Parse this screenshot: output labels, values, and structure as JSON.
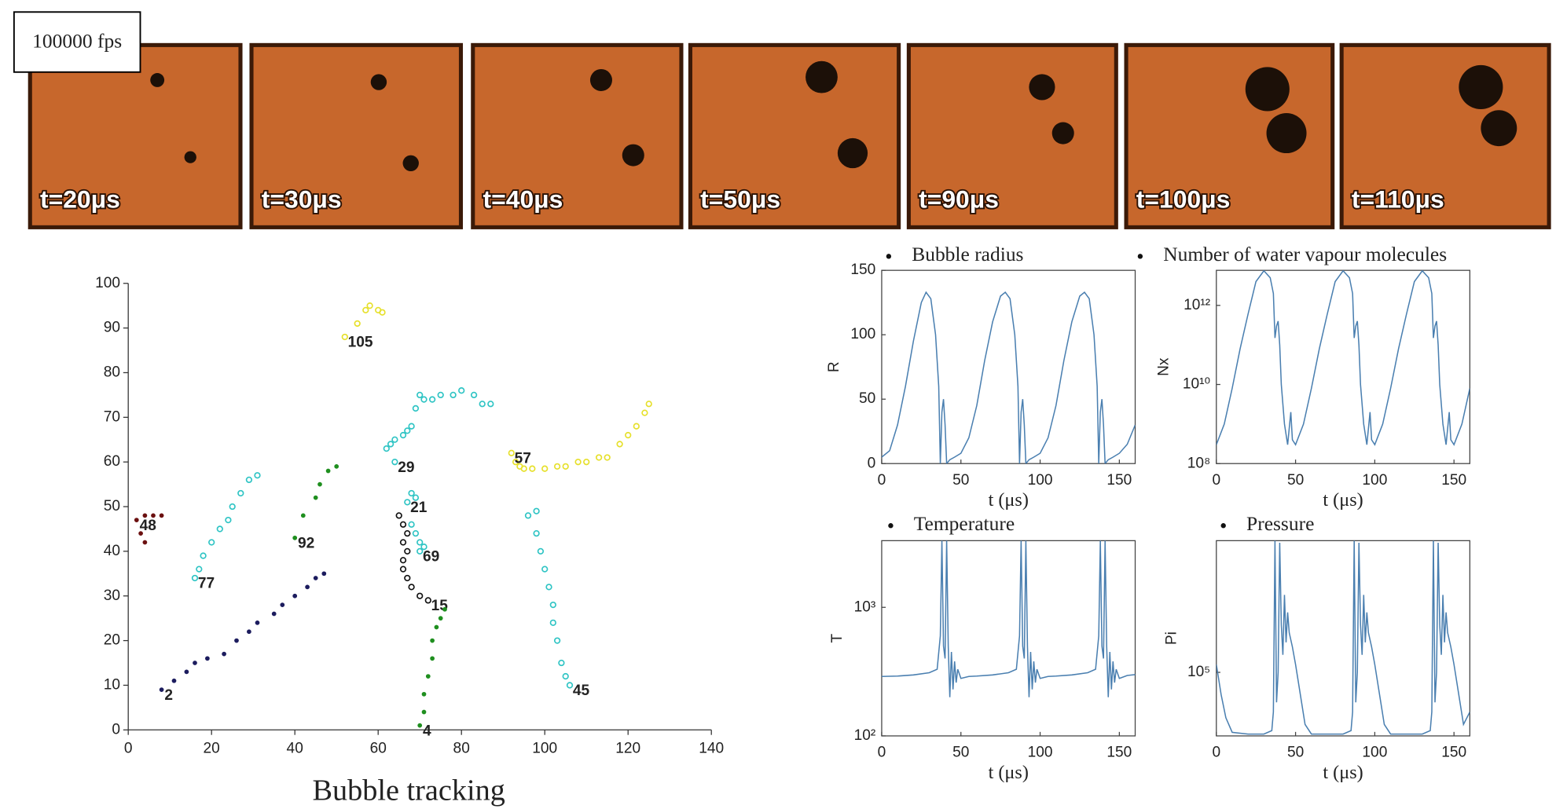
{
  "frames": {
    "label": "100000 fps",
    "captions": [
      "t=20μs",
      "t=30μs",
      "t=40μs",
      "t=50μs",
      "t=90μs",
      "t=100μs",
      "t=110μs"
    ]
  },
  "chart_data": [
    {
      "type": "scatter",
      "title": "Bubble tracking",
      "xlim": [
        0,
        140
      ],
      "ylim": [
        0,
        100
      ],
      "xticks": [
        0,
        20,
        40,
        60,
        80,
        100,
        120,
        140
      ],
      "yticks": [
        0,
        10,
        20,
        30,
        40,
        50,
        60,
        70,
        80,
        90,
        100
      ],
      "series": [
        {
          "name": "105",
          "color": "#e6e02a",
          "marker": "open",
          "x": [
            52,
            55,
            57,
            58,
            60,
            61
          ],
          "values": [
            88,
            91,
            94,
            95,
            94,
            93.5
          ]
        },
        {
          "name": "57",
          "color": "#e6e02a",
          "marker": "open",
          "x": [
            92,
            93,
            94,
            95,
            97,
            100,
            103,
            105,
            108,
            110,
            113,
            115,
            118,
            120,
            122,
            124,
            125
          ],
          "values": [
            62,
            60,
            59,
            58.5,
            58.5,
            58.5,
            59,
            59,
            60,
            60,
            61,
            61,
            64,
            66,
            68,
            71,
            73
          ]
        },
        {
          "name": "29",
          "color": "#2ec4c4",
          "marker": "open",
          "x": [
            64,
            62,
            63,
            64,
            66,
            67,
            68,
            69,
            70,
            71,
            73,
            75,
            78,
            80,
            83,
            85,
            87
          ],
          "values": [
            60,
            63,
            64,
            65,
            66,
            67,
            68,
            72,
            75,
            74,
            74,
            75,
            75,
            76,
            75,
            73,
            73
          ]
        },
        {
          "name": "21",
          "color": "#2ec4c4",
          "marker": "open",
          "x": [
            67,
            68,
            69
          ],
          "values": [
            51,
            53,
            52
          ]
        },
        {
          "name": "69",
          "color": "#2ec4c4",
          "marker": "open",
          "x": [
            70,
            71,
            70,
            69,
            68
          ],
          "values": [
            40,
            41,
            42,
            44,
            46
          ]
        },
        {
          "name": "48",
          "color": "#6b1010",
          "marker": "filled",
          "x": [
            2,
            4,
            6,
            8,
            3,
            4
          ],
          "values": [
            47,
            48,
            48,
            48,
            44,
            42
          ]
        },
        {
          "name": "77",
          "color": "#2ec4c4",
          "marker": "open",
          "x": [
            16,
            17,
            18,
            20,
            22,
            24,
            25,
            27,
            29,
            31
          ],
          "values": [
            34,
            36,
            39,
            42,
            45,
            47,
            50,
            53,
            56,
            57
          ]
        },
        {
          "name": "92",
          "color": "#1f8f1f",
          "marker": "filled",
          "x": [
            40,
            42,
            45,
            46,
            48,
            50
          ],
          "values": [
            43,
            48,
            52,
            55,
            58,
            59
          ]
        },
        {
          "name": "2",
          "color": "#1c1c5e",
          "marker": "filled",
          "x": [
            8,
            11,
            14,
            16,
            19,
            23,
            26,
            29,
            31,
            35,
            37,
            40,
            43,
            45,
            47
          ],
          "values": [
            9,
            11,
            13,
            15,
            16,
            17,
            20,
            22,
            24,
            26,
            28,
            30,
            32,
            34,
            35
          ]
        },
        {
          "name": "15",
          "color": "#111111",
          "marker": "open",
          "x": [
            72,
            70,
            68,
            67,
            66,
            66,
            67,
            66,
            67,
            66,
            65
          ],
          "values": [
            29,
            30,
            32,
            34,
            36,
            38,
            40,
            42,
            44,
            46,
            48
          ]
        },
        {
          "name": "4",
          "color": "#1f8f1f",
          "marker": "filled",
          "x": [
            70,
            71,
            71,
            72,
            73,
            73,
            74,
            75,
            76
          ],
          "values": [
            1,
            4,
            8,
            12,
            16,
            20,
            23,
            25,
            27
          ]
        },
        {
          "name": "45",
          "color": "#2ec4c4",
          "marker": "open",
          "x": [
            106,
            105,
            104,
            103,
            102,
            102,
            101,
            100,
            99,
            98,
            98,
            96
          ],
          "values": [
            10,
            12,
            15,
            20,
            24,
            28,
            32,
            36,
            40,
            44,
            49,
            48
          ]
        }
      ]
    },
    {
      "type": "line",
      "title": "Bubble radius",
      "x_label": "t (μs)",
      "y_label": "R",
      "color": "#4a7fb0",
      "log_y": false,
      "xlim": [
        0,
        160
      ],
      "ylim": [
        0,
        150
      ],
      "xticks": [
        0,
        50,
        100,
        150
      ],
      "yticks": [
        0,
        50,
        100,
        150
      ],
      "x": [
        0,
        5,
        10,
        15,
        20,
        25,
        28,
        31,
        34,
        36,
        37,
        38,
        39,
        40,
        41,
        43,
        46,
        50,
        55,
        60,
        65,
        70,
        75,
        78,
        81,
        84,
        86,
        87,
        88,
        89,
        90,
        91,
        93,
        96,
        100,
        105,
        110,
        115,
        120,
        125,
        128,
        131,
        134,
        136,
        137,
        138,
        139,
        140,
        141,
        143,
        146,
        150,
        155,
        160
      ],
      "values": [
        5,
        10,
        30,
        60,
        95,
        125,
        133,
        128,
        100,
        60,
        0,
        40,
        50,
        30,
        0,
        3,
        5,
        8,
        20,
        45,
        80,
        110,
        130,
        133,
        128,
        100,
        60,
        0,
        40,
        50,
        30,
        0,
        3,
        5,
        8,
        20,
        45,
        80,
        110,
        130,
        133,
        128,
        100,
        60,
        0,
        40,
        50,
        30,
        0,
        3,
        5,
        8,
        15,
        30
      ]
    },
    {
      "type": "line",
      "title": "Number of water vapour molecules",
      "x_label": "t (μs)",
      "y_label": "Nx",
      "color": "#4a7fb0",
      "log_y": true,
      "xlim": [
        0,
        160
      ],
      "ylim": [
        100000000,
        7700000000000
      ],
      "xticks": [
        0,
        50,
        100,
        150
      ],
      "yticks": [
        {
          "value": 100000000,
          "label": "10⁸"
        },
        {
          "value": 10000000000,
          "label": "10¹⁰"
        },
        {
          "value": 1000000000000,
          "label": "10¹²"
        }
      ],
      "x": [
        0,
        5,
        10,
        15,
        20,
        25,
        30,
        34,
        36,
        37,
        38,
        39,
        40,
        41,
        43,
        45,
        47,
        48,
        50,
        55,
        60,
        65,
        70,
        75,
        80,
        84,
        86,
        87,
        88,
        89,
        90,
        91,
        93,
        95,
        97,
        98,
        100,
        105,
        110,
        115,
        120,
        125,
        130,
        134,
        136,
        137,
        138,
        139,
        140,
        141,
        143,
        145,
        147,
        148,
        150,
        155,
        160
      ],
      "values": [
        300000000.0,
        1000000000.0,
        8000000000.0,
        80000000000.0,
        600000000000.0,
        4000000000000.0,
        7500000000000.0,
        5000000000000.0,
        2000000000000.0,
        150000000000.0,
        300000000000.0,
        400000000000.0,
        100000000000.0,
        10000000000.0,
        1000000000.0,
        300000000.0,
        2000000000.0,
        400000000.0,
        300000000.0,
        1000000000.0,
        8000000000.0,
        80000000000.0,
        600000000000.0,
        4000000000000.0,
        7500000000000.0,
        5000000000000.0,
        2000000000000.0,
        150000000000.0,
        300000000000.0,
        400000000000.0,
        100000000000.0,
        10000000000.0,
        1000000000.0,
        300000000.0,
        2000000000.0,
        400000000.0,
        300000000.0,
        1000000000.0,
        8000000000.0,
        80000000000.0,
        600000000000.0,
        4000000000000.0,
        7500000000000.0,
        5000000000000.0,
        2000000000000.0,
        150000000000.0,
        300000000000.0,
        400000000000.0,
        100000000000.0,
        10000000000.0,
        1000000000.0,
        300000000.0,
        2000000000.0,
        400000000.0,
        300000000.0,
        1000000000.0,
        8000000000.0
      ]
    },
    {
      "type": "line",
      "title": "Temperature",
      "x_label": "t (μs)",
      "y_label": "T",
      "color": "#4a7fb0",
      "log_y": true,
      "xlim": [
        0,
        160
      ],
      "ylim": [
        100,
        3300
      ],
      "xticks": [
        0,
        50,
        100,
        150
      ],
      "yticks": [
        {
          "value": 100,
          "label": "10²"
        },
        {
          "value": 1000,
          "label": "10³"
        }
      ],
      "x": [
        0,
        10,
        20,
        30,
        35,
        37,
        38,
        39,
        40,
        41,
        42,
        43,
        44,
        45,
        46,
        47,
        48,
        50,
        55,
        60,
        70,
        80,
        85,
        87,
        88,
        89,
        90,
        91,
        92,
        93,
        94,
        95,
        96,
        97,
        98,
        100,
        105,
        110,
        120,
        130,
        135,
        137,
        138,
        139,
        140,
        141,
        142,
        143,
        144,
        145,
        146,
        147,
        148,
        150,
        155,
        160
      ],
      "values": [
        290,
        292,
        298,
        310,
        330,
        600,
        3300,
        500,
        400,
        3300,
        500,
        200,
        450,
        230,
        380,
        260,
        330,
        280,
        290,
        292,
        298,
        310,
        330,
        600,
        3300,
        500,
        400,
        3300,
        500,
        200,
        450,
        230,
        380,
        260,
        330,
        280,
        290,
        292,
        298,
        310,
        330,
        600,
        3300,
        500,
        400,
        3300,
        500,
        200,
        450,
        230,
        380,
        260,
        330,
        280,
        295,
        300
      ]
    },
    {
      "type": "line",
      "title": "Pressure",
      "x_label": "t (μs)",
      "y_label": "Pi",
      "color": "#4a7fb0",
      "log_y": true,
      "xlim": [
        0,
        160
      ],
      "ylim": [
        23000,
        2100000
      ],
      "xticks": [
        0,
        50,
        100,
        150
      ],
      "yticks": [
        {
          "value": 100000,
          "label": "10⁵"
        }
      ],
      "x": [
        0,
        3,
        6,
        10,
        20,
        30,
        35,
        36,
        37,
        38,
        39,
        40,
        41,
        42,
        43,
        44,
        45,
        46,
        48,
        50,
        53,
        56,
        60,
        70,
        80,
        85,
        86,
        87,
        88,
        89,
        90,
        91,
        92,
        93,
        94,
        95,
        96,
        98,
        100,
        103,
        106,
        110,
        120,
        130,
        135,
        136,
        137,
        138,
        139,
        140,
        141,
        142,
        143,
        144,
        145,
        146,
        148,
        150,
        153,
        156,
        160
      ],
      "values": [
        120000,
        60000,
        35000,
        25000,
        24000,
        24000,
        26000,
        40000,
        2100000,
        50000,
        100000,
        2000000,
        300000,
        150000,
        600000,
        200000,
        400000,
        250000,
        180000,
        120000,
        60000,
        30000,
        24000,
        24000,
        24000,
        26000,
        40000,
        2100000,
        50000,
        100000,
        2000000,
        300000,
        150000,
        600000,
        200000,
        400000,
        250000,
        180000,
        120000,
        60000,
        30000,
        24000,
        24000,
        24000,
        26000,
        40000,
        2100000,
        50000,
        100000,
        2000000,
        300000,
        150000,
        600000,
        200000,
        400000,
        250000,
        180000,
        120000,
        60000,
        30000,
        40000
      ]
    }
  ]
}
